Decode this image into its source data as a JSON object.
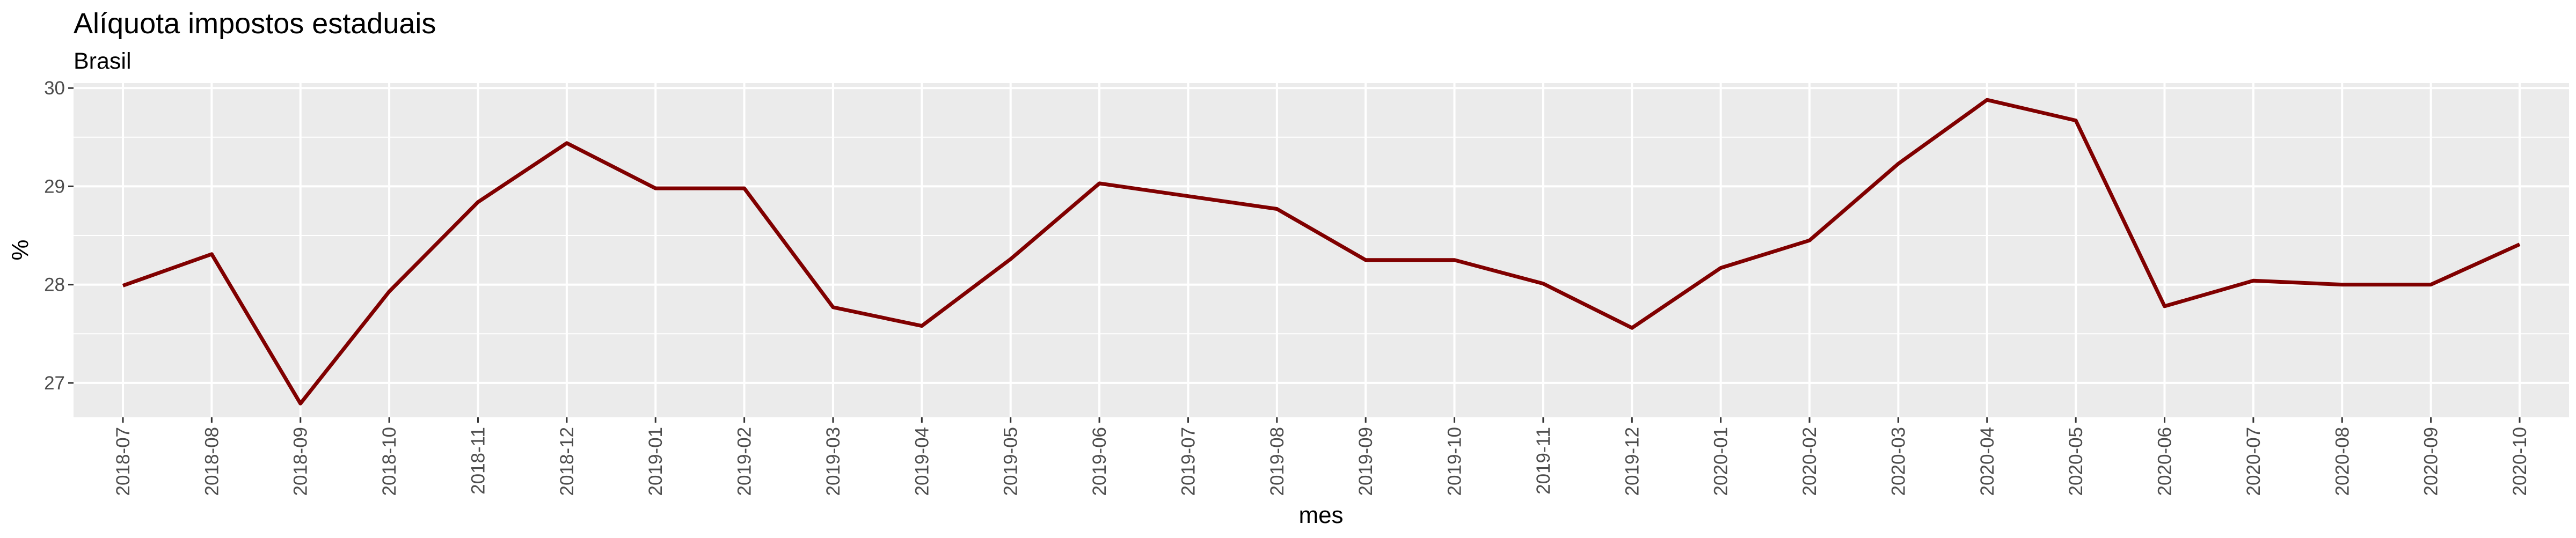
{
  "chart_data": {
    "type": "line",
    "title": "Alíquota impostos estaduais",
    "subtitle": "Brasil",
    "xlabel": "mes",
    "ylabel": "%",
    "ylim": [
      26.65,
      30.05
    ],
    "yticks": [
      27,
      28,
      29,
      30
    ],
    "grid": true,
    "colors": {
      "line": "#800000",
      "panel": "#ebebeb",
      "grid": "#ffffff"
    },
    "x": [
      "2018-07",
      "2018-08",
      "2018-09",
      "2018-10",
      "2018-11",
      "2018-12",
      "2019-01",
      "2019-02",
      "2019-03",
      "2019-04",
      "2019-05",
      "2019-06",
      "2019-07",
      "2019-08",
      "2019-09",
      "2019-10",
      "2019-11",
      "2019-12",
      "2020-01",
      "2020-02",
      "2020-03",
      "2020-04",
      "2020-05",
      "2020-06",
      "2020-07",
      "2020-08",
      "2020-09",
      "2020-10"
    ],
    "series": [
      {
        "values": [
          27.99,
          28.31,
          26.79,
          27.93,
          28.84,
          29.44,
          28.98,
          28.98,
          27.77,
          27.58,
          28.26,
          29.03,
          28.9,
          28.77,
          28.25,
          28.25,
          28.01,
          27.56,
          28.17,
          28.45,
          29.23,
          29.88,
          29.67,
          27.78,
          28.04,
          28.0,
          28.0,
          28.41
        ]
      }
    ]
  }
}
